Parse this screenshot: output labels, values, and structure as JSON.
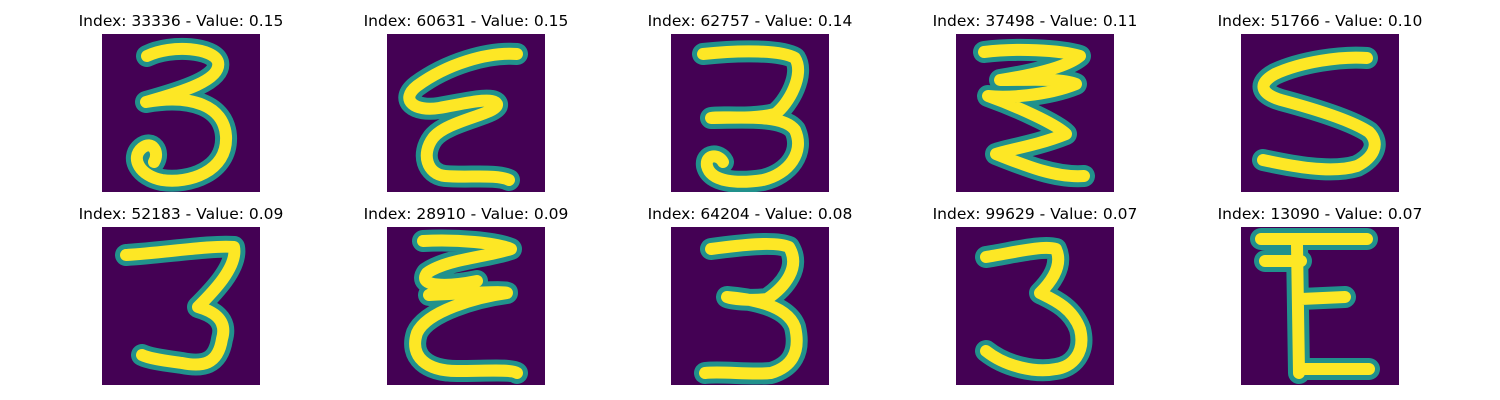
{
  "colors": {
    "background": "#440154",
    "mid": "#21918c",
    "high": "#d6e42a",
    "peak": "#fde725"
  },
  "panels": [
    {
      "title": "Index: 33336 - Value: 0.15",
      "glyph": "3"
    },
    {
      "title": "Index: 60631 - Value: 0.15",
      "glyph": "script-e"
    },
    {
      "title": "Index: 62757 - Value: 0.14",
      "glyph": "3"
    },
    {
      "title": "Index: 37498 - Value: 0.11",
      "glyph": "zigzag-3"
    },
    {
      "title": "Index: 51766 - Value: 0.10",
      "glyph": "5"
    },
    {
      "title": "Index: 52183 - Value: 0.09",
      "glyph": "3"
    },
    {
      "title": "Index: 28910 - Value: 0.09",
      "glyph": "script-e"
    },
    {
      "title": "Index: 64204 - Value: 0.08",
      "glyph": "3"
    },
    {
      "title": "Index: 99629 - Value: 0.07",
      "glyph": "3"
    },
    {
      "title": "Index: 13090 - Value: 0.07",
      "glyph": "E"
    }
  ]
}
